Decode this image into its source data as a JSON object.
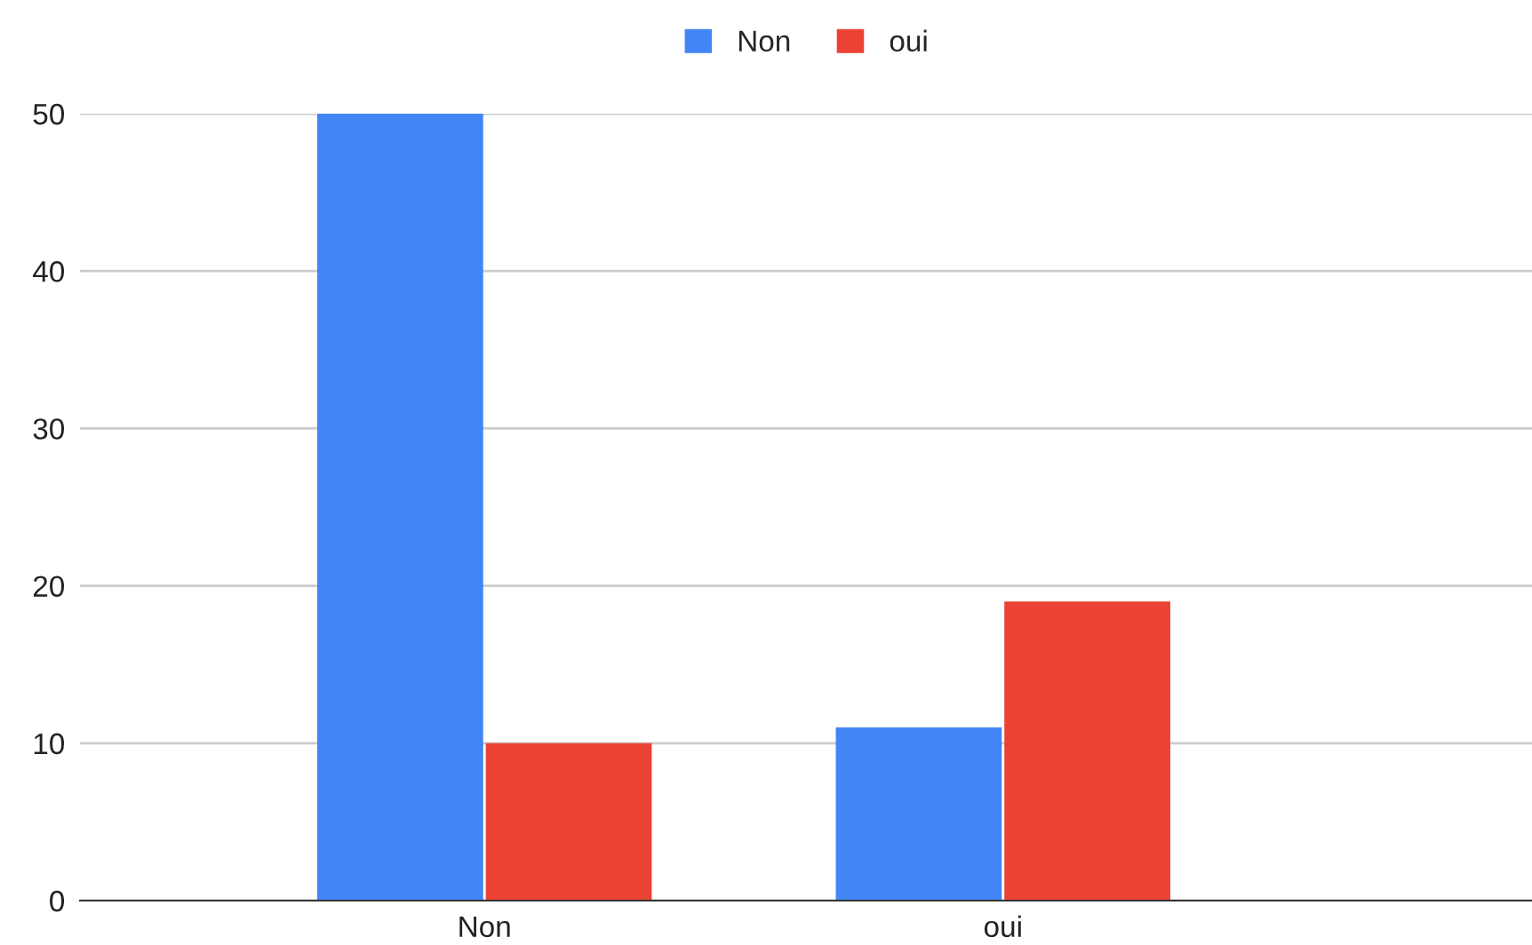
{
  "chart_data": {
    "type": "bar",
    "categories": [
      "Non",
      "oui"
    ],
    "series": [
      {
        "name": "Non",
        "color": "#4285f4",
        "values": [
          50,
          11
        ]
      },
      {
        "name": "oui",
        "color": "#ea4335",
        "values": [
          10,
          19
        ]
      }
    ],
    "ylim": [
      0,
      50
    ],
    "yticks": [
      0,
      10,
      20,
      30,
      40,
      50
    ],
    "grid": "y",
    "legend": "top"
  }
}
